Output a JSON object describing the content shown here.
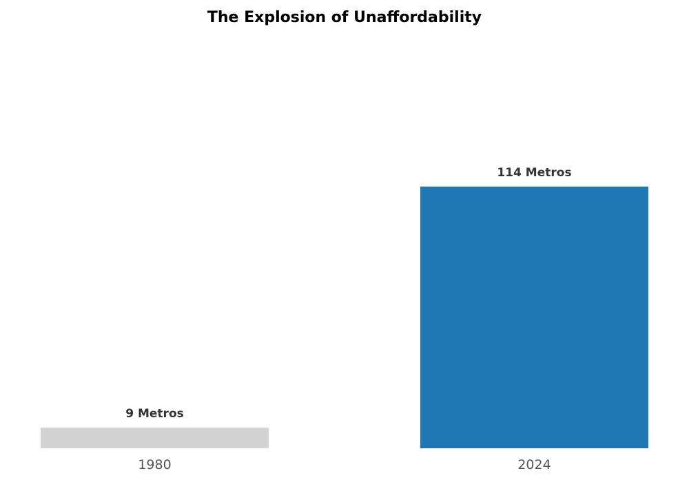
{
  "chart_data": {
    "type": "bar",
    "title": "The Explosion of Unaffordability",
    "categories": [
      "1980",
      "2024"
    ],
    "values": [
      9,
      114
    ],
    "data_labels": [
      "9 Metros",
      "114 Metros"
    ],
    "colors": [
      "#d3d3d3",
      "#1f77b4"
    ],
    "xlabel": "",
    "ylabel": "",
    "ylim": [
      0,
      140
    ],
    "grid": false,
    "axes_visible": false
  }
}
